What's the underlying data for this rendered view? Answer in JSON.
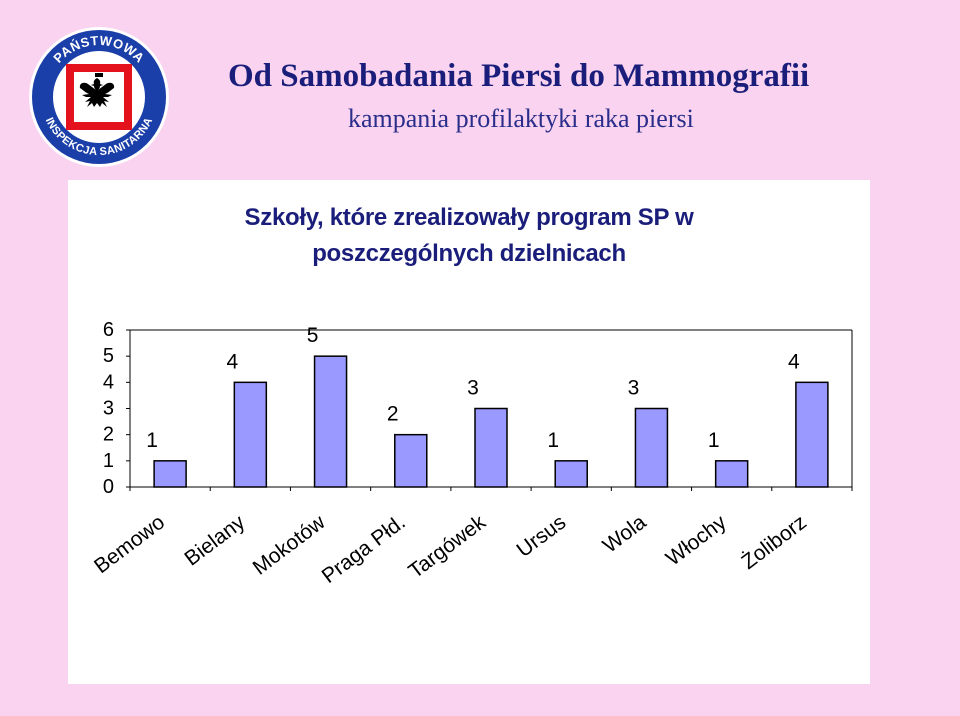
{
  "header": {
    "logo": {
      "icon": "polish-eagle-emblem-icon",
      "arc_text_top": "PAŃSTWOWA",
      "arc_text_bottom": "INSPEKCJA SANITARNA",
      "colors": {
        "ring": "#1a3fa8",
        "red": "#e3121d",
        "white": "#ffffff"
      }
    },
    "title": "Od Samobadania Piersi do Mammografii",
    "subtitle": "kampania profilaktyki raka piersi"
  },
  "chart_data": {
    "type": "bar",
    "title_lines": [
      "Szkoły, które zrealizowały program SP w",
      "poszczególnych dzielnicach"
    ],
    "categories": [
      "Bemowo",
      "Bielany",
      "Mokotów",
      "Praga Płd.",
      "Targówek",
      "Ursus",
      "Wola",
      "Włochy",
      "Żoliborz"
    ],
    "values": [
      1,
      4,
      5,
      2,
      3,
      1,
      3,
      1,
      4
    ],
    "yticks": [
      0,
      1,
      2,
      3,
      4,
      5,
      6
    ],
    "ylim": [
      0,
      6
    ],
    "grid": false,
    "legend": "none",
    "colors": {
      "bar_fill": "#9999ff",
      "bar_stroke": "#000000"
    }
  }
}
